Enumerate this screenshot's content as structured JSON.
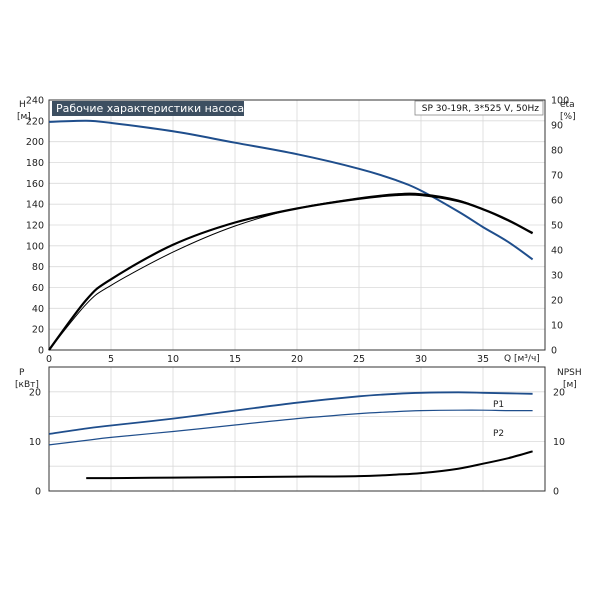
{
  "chart_data": [
    {
      "type": "line",
      "title": "Рабочие характеристики насоса",
      "model": "SP 30-19R, 3*525 V, 50Hz",
      "ylabel": "H",
      "yunit": "[м]",
      "y2label": "eta",
      "y2unit": "[%]",
      "xlabel": "Q",
      "xunit": "[м³/ч]",
      "xlim": [
        0,
        40
      ],
      "ylim": [
        0,
        240
      ],
      "y2lim": [
        0,
        100
      ],
      "xticks": [
        "0",
        "5",
        "10",
        "15",
        "20",
        "25",
        "30",
        "35"
      ],
      "yticks": [
        "0",
        "20",
        "40",
        "60",
        "80",
        "100",
        "120",
        "140",
        "160",
        "180",
        "200",
        "220",
        "240"
      ],
      "y2ticks": [
        "0",
        "10",
        "20",
        "30",
        "40",
        "50",
        "60",
        "70",
        "80",
        "90",
        "100"
      ],
      "grid": true,
      "series": [
        {
          "axis": "y",
          "color": "#1f4e8c",
          "points": [
            [
              0,
              219
            ],
            [
              3,
              220
            ],
            [
              5,
              218
            ],
            [
              10,
              210
            ],
            [
              15,
              199
            ],
            [
              20,
              188
            ],
            [
              25,
              174
            ],
            [
              28,
              163
            ],
            [
              30,
              153
            ],
            [
              33,
              133
            ],
            [
              35,
              118
            ],
            [
              37,
              104
            ],
            [
              39,
              87
            ]
          ]
        },
        {
          "axis": "y2",
          "color": "#000000",
          "points": [
            [
              0,
              0
            ],
            [
              3,
              20
            ],
            [
              5,
              28.3
            ],
            [
              10,
              42.1
            ],
            [
              15,
              51
            ],
            [
              20,
              56.6
            ],
            [
              25,
              60.5
            ],
            [
              28,
              62
            ],
            [
              30,
              62
            ],
            [
              33,
              59.6
            ],
            [
              35,
              56.3
            ],
            [
              37,
              52
            ],
            [
              39,
              46.7
            ]
          ]
        },
        {
          "axis": "y",
          "color": "#000000",
          "points": [
            [
              0,
              0
            ],
            [
              3,
              44
            ],
            [
              5,
              62
            ],
            [
              10,
              94
            ],
            [
              15,
              119
            ],
            [
              20,
              136
            ],
            [
              25,
              146
            ],
            [
              28,
              150
            ],
            [
              30,
              150
            ],
            [
              33,
              144
            ],
            [
              35,
              135
            ],
            [
              37,
              124
            ],
            [
              39,
              113
            ]
          ]
        }
      ]
    },
    {
      "type": "line",
      "ylabel": "P",
      "yunit": "[кВт]",
      "y2label": "NPSH",
      "y2unit": "[м]",
      "ylim": [
        0,
        25
      ],
      "y2lim": [
        0,
        25
      ],
      "xlim": [
        0,
        40
      ],
      "yticks": [
        "0",
        "10",
        "20"
      ],
      "y2ticks": [
        "0",
        "10",
        "20"
      ],
      "grid": true,
      "series": [
        {
          "name": "P1",
          "axis": "y",
          "color": "#1f4e8c",
          "points": [
            [
              0,
              11.5
            ],
            [
              3,
              12.6
            ],
            [
              5,
              13.2
            ],
            [
              10,
              14.6
            ],
            [
              15,
              16.2
            ],
            [
              20,
              17.8
            ],
            [
              25,
              19.1
            ],
            [
              28,
              19.6
            ],
            [
              30,
              19.8
            ],
            [
              33,
              19.9
            ],
            [
              35,
              19.8
            ],
            [
              37,
              19.7
            ],
            [
              39,
              19.6
            ]
          ]
        },
        {
          "name": "P2",
          "axis": "y",
          "color": "#1f4e8c",
          "points": [
            [
              0,
              9.3
            ],
            [
              3,
              10.2
            ],
            [
              5,
              10.8
            ],
            [
              10,
              12
            ],
            [
              15,
              13.3
            ],
            [
              20,
              14.6
            ],
            [
              25,
              15.6
            ],
            [
              28,
              16
            ],
            [
              30,
              16.2
            ],
            [
              33,
              16.3
            ],
            [
              35,
              16.3
            ],
            [
              37,
              16.2
            ],
            [
              39,
              16.2
            ]
          ]
        },
        {
          "axis": "y2",
          "color": "#000000",
          "points": [
            [
              3,
              2.6
            ],
            [
              5,
              2.6
            ],
            [
              10,
              2.7
            ],
            [
              15,
              2.8
            ],
            [
              20,
              2.9
            ],
            [
              25,
              3
            ],
            [
              28,
              3.3
            ],
            [
              30,
              3.6
            ],
            [
              33,
              4.5
            ],
            [
              35,
              5.5
            ],
            [
              37,
              6.6
            ],
            [
              39,
              8
            ]
          ]
        }
      ]
    }
  ]
}
